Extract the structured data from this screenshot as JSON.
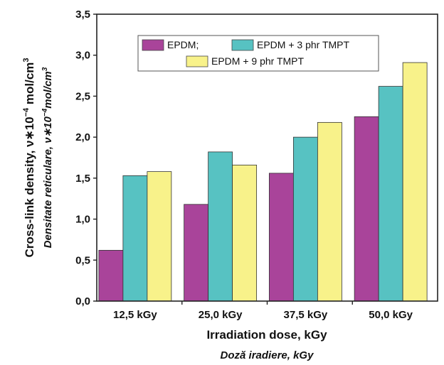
{
  "chart_data": {
    "type": "bar",
    "categories": [
      "12,5 kGy",
      "25,0 kGy",
      "37,5 kGy",
      "50,0 kGy"
    ],
    "series": [
      {
        "name": "EPDM;",
        "color": "#A9449A",
        "values": [
          0.62,
          1.18,
          1.56,
          2.25
        ]
      },
      {
        "name": "EPDM + 3 phr TMPT",
        "color": "#57C2C2",
        "values": [
          1.53,
          1.82,
          2.0,
          2.62
        ]
      },
      {
        "name": "EPDM + 9 phr TMPT",
        "color": "#F8F28A",
        "values": [
          1.58,
          1.66,
          2.18,
          2.91
        ]
      }
    ],
    "xlabel": "Irradiation dose, kGy",
    "xlabel_secondary": "Doză iradiere, kGy",
    "ylabel_main": "Cross-link density, ν∗10",
    "ylabel_main_exp": "−4",
    "ylabel_main_unit": " mol/cm",
    "ylabel_main_unit_exp": "3",
    "ylabel_secondary": "Densitate reticulare, ν∗10",
    "ylabel_secondary_exp": "−4",
    "ylabel_secondary_unit": "mol/cm",
    "ylabel_secondary_unit_exp": "3",
    "ylim": [
      0,
      3.5
    ],
    "yticks": [
      "0,0",
      "0,5",
      "1,0",
      "1,5",
      "2,0",
      "2,5",
      "3,0",
      "3,5"
    ],
    "legend_placement": "top-center",
    "grid": false
  }
}
